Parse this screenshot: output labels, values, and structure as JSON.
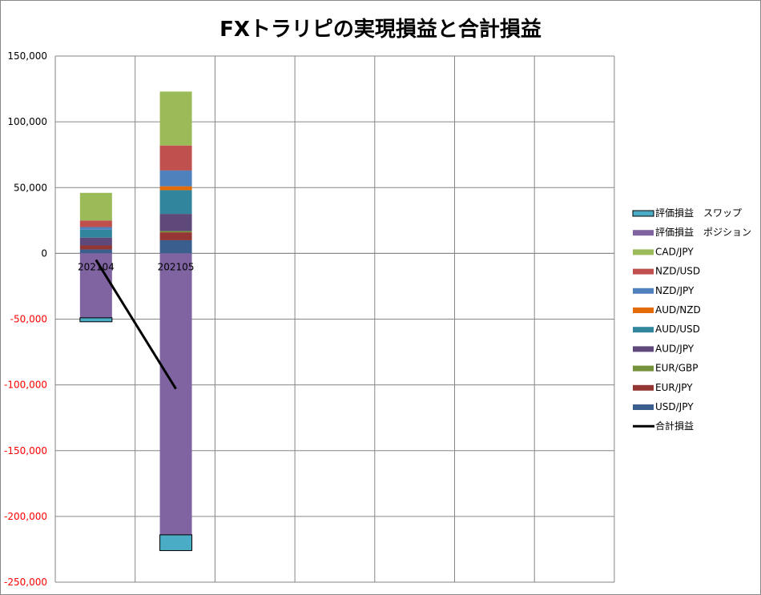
{
  "chart_data": {
    "type": "bar",
    "title": "FXトラリピの実現損益と合計損益",
    "categories": [
      "202104",
      "202105"
    ],
    "ylim": [
      -250000,
      150000
    ],
    "yticks": [
      150000,
      100000,
      50000,
      0,
      -50000,
      -100000,
      -150000,
      -200000,
      -250000
    ],
    "ytick_labels": [
      "150,000",
      "100,000",
      "50,000",
      "0",
      "-50,000",
      "-100,000",
      "-150,000",
      "-200,000",
      "-250,000"
    ],
    "grid": true,
    "legend_position": "right",
    "series": [
      {
        "name": "USD/JPY",
        "type": "bar",
        "color": "#3a5f8f",
        "values": [
          3000,
          10000
        ]
      },
      {
        "name": "EUR/JPY",
        "type": "bar",
        "color": "#943634",
        "values": [
          3000,
          6000
        ]
      },
      {
        "name": "EUR/GBP",
        "type": "bar",
        "color": "#76923c",
        "values": [
          0,
          1000
        ]
      },
      {
        "name": "AUD/JPY",
        "type": "bar",
        "color": "#5f497a",
        "values": [
          6000,
          13000
        ]
      },
      {
        "name": "AUD/USD",
        "type": "bar",
        "color": "#31859c",
        "values": [
          6000,
          18000
        ]
      },
      {
        "name": "AUD/NZD",
        "type": "bar",
        "color": "#e36c09",
        "values": [
          0,
          3000
        ]
      },
      {
        "name": "NZD/JPY",
        "type": "bar",
        "color": "#4f81bd",
        "values": [
          2000,
          12000
        ]
      },
      {
        "name": "NZD/USD",
        "type": "bar",
        "color": "#c0504d",
        "values": [
          5000,
          19000
        ]
      },
      {
        "name": "CAD/JPY",
        "type": "bar",
        "color": "#9bbb59",
        "values": [
          21000,
          41000
        ]
      },
      {
        "name": "評価損益　ポジション",
        "type": "bar",
        "color": "#8064a2",
        "values": [
          -49000,
          -214000
        ]
      },
      {
        "name": "評価損益　スワップ",
        "type": "bar",
        "color": "#4bacc6",
        "values": [
          -3000,
          -12000
        ]
      },
      {
        "name": "合計損益",
        "type": "line",
        "color": "#000000",
        "values": [
          -5000,
          -103000
        ]
      }
    ]
  }
}
